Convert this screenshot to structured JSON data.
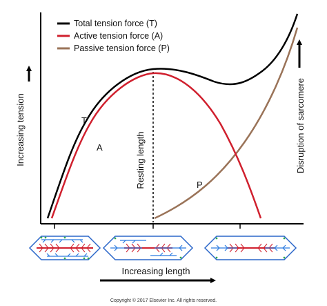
{
  "legend": {
    "items": [
      {
        "label": "Total tension force (T)",
        "color": "#000000"
      },
      {
        "label": "Active tension force (A)",
        "color": "#d0202e"
      },
      {
        "label": "Passive tension force (P)",
        "color": "#9a7358"
      }
    ]
  },
  "axes": {
    "y_label": "Increasing tension",
    "x_label": "Increasing length"
  },
  "annotations": {
    "resting_length": "Resting length",
    "disruption": "Disruption of sarcomere"
  },
  "curve_labels": {
    "total": "T",
    "active": "A",
    "passive": "P"
  },
  "copyright": "Copyright © 2017 Elsevier Inc. All rights reserved.",
  "colors": {
    "total": "#000000",
    "active": "#d0202e",
    "passive": "#9a7358",
    "sarcomere_border": "#2a66c9",
    "thin_filament": "#2a7ae0",
    "thick_filament": "#d0202e",
    "z_line": "#2fa84f"
  },
  "sarcomere_states": [
    "shortened",
    "resting",
    "stretched"
  ]
}
